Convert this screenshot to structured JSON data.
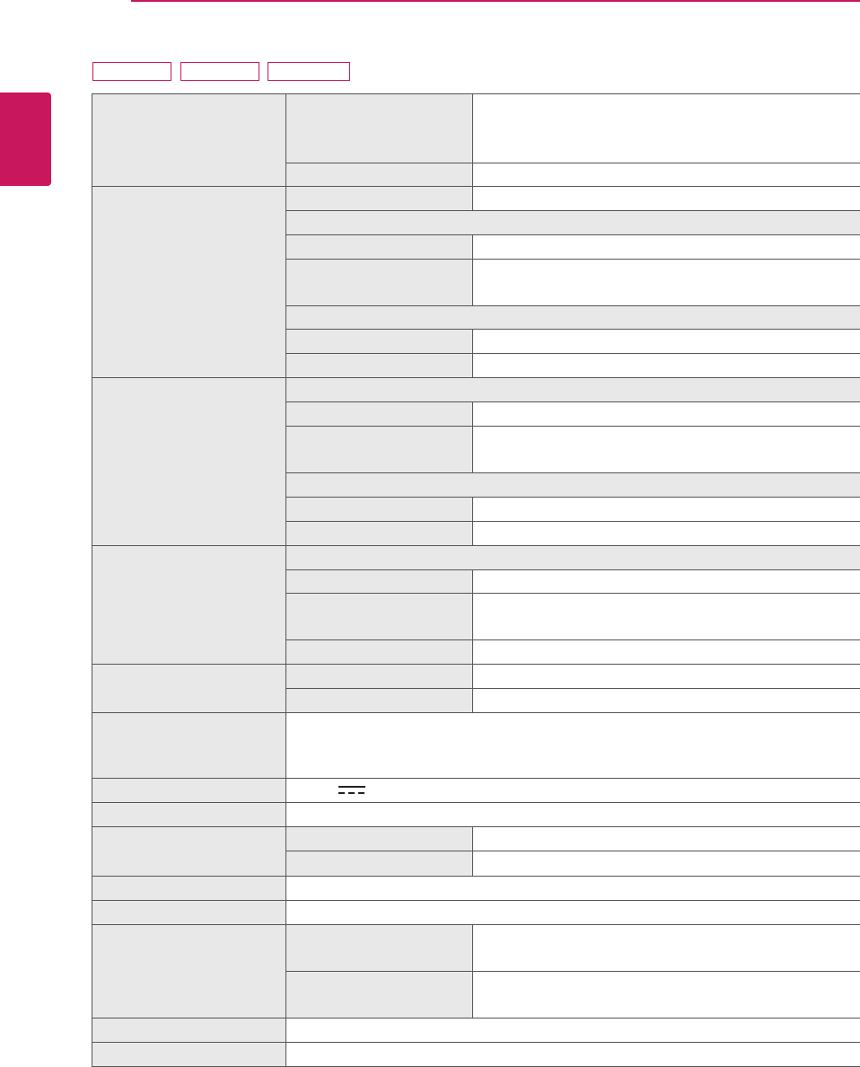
{
  "colors": {
    "accent": "#c8175d",
    "cell_shade": "#e8e8e8",
    "border": "#555555"
  },
  "header": {
    "model_tags": [
      {
        "label": ""
      },
      {
        "label": ""
      },
      {
        "label": ""
      }
    ]
  },
  "icons": {
    "dc_symbol": "direct-current-icon"
  }
}
